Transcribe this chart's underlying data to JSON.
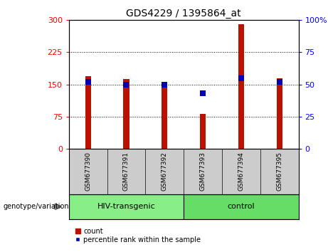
{
  "title": "GDS4229 / 1395864_at",
  "samples": [
    "GSM677390",
    "GSM677391",
    "GSM677392",
    "GSM677393",
    "GSM677394",
    "GSM677395"
  ],
  "counts": [
    170,
    162,
    151,
    82,
    291,
    165
  ],
  "percentile_ranks": [
    52,
    50,
    50,
    43,
    55,
    52
  ],
  "left_ylim": [
    0,
    300
  ],
  "right_ylim": [
    0,
    100
  ],
  "left_yticks": [
    0,
    75,
    150,
    225,
    300
  ],
  "right_yticks": [
    0,
    25,
    50,
    75,
    100
  ],
  "right_yticklabels": [
    "0",
    "25",
    "50",
    "75",
    "100%"
  ],
  "bar_color": "#bb1100",
  "percentile_color": "#0000bb",
  "groups": [
    {
      "label": "HIV-transgenic",
      "start": 0,
      "end": 3,
      "color": "#88ee88"
    },
    {
      "label": "control",
      "start": 3,
      "end": 6,
      "color": "#66dd66"
    }
  ],
  "sample_bg_color": "#cccccc",
  "legend_count_label": "count",
  "legend_percentile_label": "percentile rank within the sample",
  "genotype_label": "genotype/variation",
  "bar_width": 0.15,
  "figure_width": 4.61,
  "figure_height": 3.54,
  "dpi": 100
}
